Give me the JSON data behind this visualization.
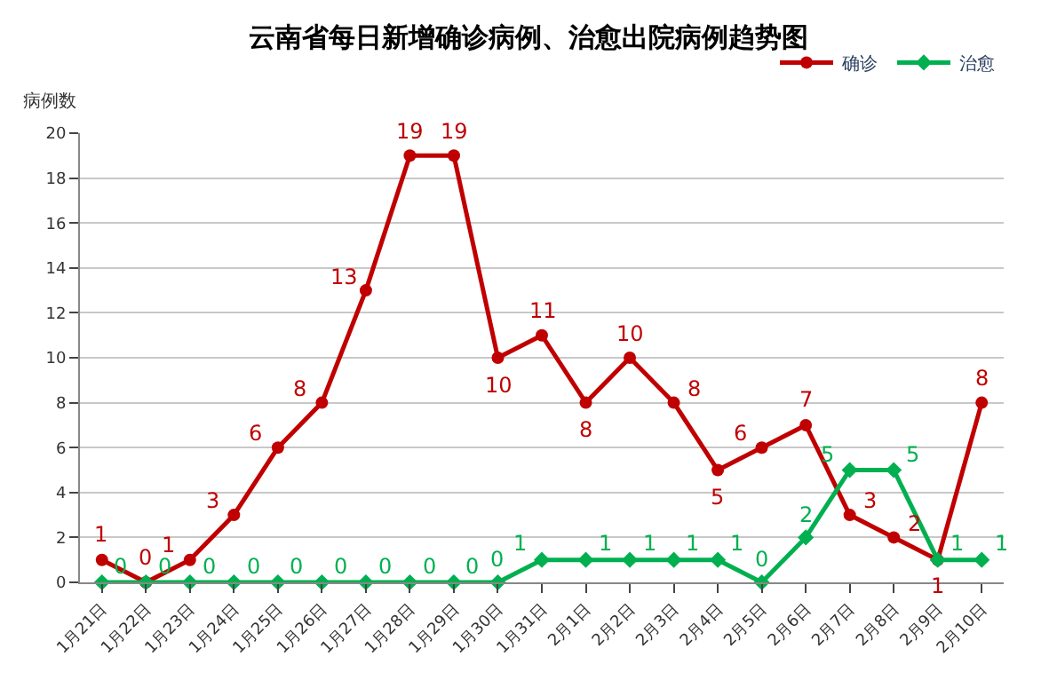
{
  "chart_data": {
    "type": "line",
    "title": "云南省每日新增确诊病例、治愈出院病例趋势图",
    "ylabel": "病例数",
    "categories": [
      "1月21日",
      "1月22日",
      "1月23日",
      "1月24日",
      "1月25日",
      "1月26日",
      "1月27日",
      "1月28日",
      "1月29日",
      "1月30日",
      "1月31日",
      "2月1日",
      "2月2日",
      "2月3日",
      "2月4日",
      "2月5日",
      "2月6日",
      "2月7日",
      "2月8日",
      "2月9日",
      "2月10日"
    ],
    "series": [
      {
        "name": "确诊",
        "color": "#c00000",
        "marker": "circle",
        "values": [
          1,
          0,
          1,
          3,
          6,
          8,
          13,
          19,
          19,
          10,
          11,
          8,
          10,
          8,
          5,
          6,
          7,
          3,
          2,
          1,
          8
        ]
      },
      {
        "name": "治愈",
        "color": "#00b050",
        "marker": "diamond",
        "values": [
          0,
          0,
          0,
          0,
          0,
          0,
          0,
          0,
          0,
          0,
          1,
          1,
          1,
          1,
          1,
          0,
          2,
          5,
          5,
          1,
          1
        ]
      }
    ],
    "ylim": [
      0,
      20
    ],
    "yticks": [
      0,
      2,
      4,
      6,
      8,
      10,
      12,
      14,
      16,
      18,
      20
    ],
    "grid": "y",
    "legend": "top right",
    "data_labels": true
  }
}
